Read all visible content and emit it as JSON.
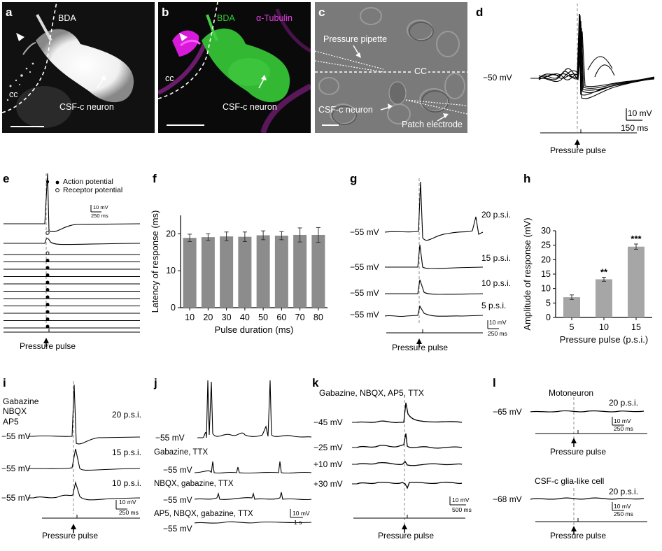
{
  "panels": {
    "a": {
      "letter": "a",
      "label_bda": "BDA",
      "label_cc": "cc",
      "label_neuron": "CSF-c neuron"
    },
    "b": {
      "letter": "b",
      "label_bda": "BDA",
      "label_tubulin": "α-Tubulin",
      "label_cc": "cc",
      "label_neuron": "CSF-c neuron"
    },
    "c": {
      "letter": "c",
      "label_pipette": "Pressure pipette",
      "label_cc": "CC",
      "label_neuron": "CSF-c neuron",
      "label_electrode": "Patch electrode"
    },
    "d": {
      "letter": "d",
      "vm": "−50 mV",
      "scale_v": "10 mV",
      "scale_t": "150 ms",
      "stim": "Pressure pulse"
    },
    "e": {
      "letter": "e",
      "legend_ap": "Action potential",
      "legend_rp": "Receptor potential",
      "scale_v": "10 mV",
      "scale_t": "250 ms",
      "stim": "Pressure pulse"
    },
    "f": {
      "letter": "f"
    },
    "g": {
      "letter": "g",
      "traces": [
        {
          "vm": "−55 mV",
          "psi": "20 p.s.i."
        },
        {
          "vm": "−55 mV",
          "psi": "15 p.s.i."
        },
        {
          "vm": "−55 mV",
          "psi": "10 p.s.i."
        },
        {
          "vm": "−55 mV",
          "psi": "5 p.s.i."
        }
      ],
      "scale_v": "10 mV",
      "scale_t": "250 ms",
      "stim": "Pressure pulse"
    },
    "h": {
      "letter": "h"
    },
    "i": {
      "letter": "i",
      "drugs": [
        "Gabazine",
        "NBQX",
        "AP5"
      ],
      "traces": [
        {
          "vm": "−55 mV",
          "psi": "20 p.s.i."
        },
        {
          "vm": "−55 mV",
          "psi": "15 p.s.i."
        },
        {
          "vm": "−55 mV",
          "psi": "10 p.s.i."
        }
      ],
      "scale_v": "10 mV",
      "scale_t": "250 ms",
      "stim": "Pressure pulse"
    },
    "j": {
      "letter": "j",
      "traces": [
        {
          "vm": "−55 mV",
          "cond": ""
        },
        {
          "vm": "−55 mV",
          "cond": "Gabazine, TTX"
        },
        {
          "vm": "−55 mV",
          "cond": "NBQX, gabazine, TTX"
        },
        {
          "vm": "−55 mV",
          "cond": "AP5, NBQX, gabazine, TTX"
        }
      ],
      "scale_v": "10 mV",
      "scale_t": "1 s"
    },
    "k": {
      "letter": "k",
      "cond": "Gabazine, NBQX, AP5, TTX",
      "traces": [
        {
          "vm": "−45 mV"
        },
        {
          "vm": "−25 mV"
        },
        {
          "vm": "+10 mV"
        },
        {
          "vm": "+30 mV"
        }
      ],
      "scale_v": "10 mV",
      "scale_t": "500 ms",
      "stim": "Pressure pulse"
    },
    "l": {
      "letter": "l",
      "top": {
        "title": "Motoneuron",
        "psi": "20 p.s.i.",
        "vm": "−65 mV",
        "scale_v": "10 mV",
        "scale_t": "250 ms",
        "stim": "Pressure pulse"
      },
      "bottom": {
        "title": "CSF-c glia-like cell",
        "psi": "20 p.s.i.",
        "vm": "−68 mV",
        "scale_v": "10 mV",
        "scale_t": "250 ms",
        "stim": "Pressure pulse"
      }
    }
  },
  "chart_data": [
    {
      "type": "bar",
      "panel": "f",
      "categories": [
        "10",
        "20",
        "30",
        "40",
        "50",
        "60",
        "70",
        "80"
      ],
      "values": [
        18.9,
        19.1,
        19.3,
        19.2,
        19.6,
        19.5,
        19.7,
        19.7
      ],
      "errors": [
        1.0,
        0.9,
        1.2,
        1.3,
        1.2,
        1.1,
        1.9,
        2.0
      ],
      "xlabel": "Pulse duration (ms)",
      "ylabel": "Latency of response (ms)",
      "ylim": [
        0,
        25
      ],
      "yticks": [
        "0",
        "10",
        "20"
      ],
      "color": "#8c8c8c"
    },
    {
      "type": "bar",
      "panel": "h",
      "categories": [
        "5",
        "10",
        "15"
      ],
      "values": [
        7.0,
        13.2,
        24.5
      ],
      "errors": [
        0.8,
        0.7,
        0.9
      ],
      "significance": [
        "",
        "**",
        "***"
      ],
      "xlabel": "Pressure pulse (p.s.i.)",
      "ylabel": "Amplitude of response (mV)",
      "ylim": [
        0,
        30
      ],
      "yticks": [
        "0",
        "5",
        "10",
        "15",
        "20",
        "25",
        "30"
      ],
      "color": "#a6a6a6"
    }
  ]
}
